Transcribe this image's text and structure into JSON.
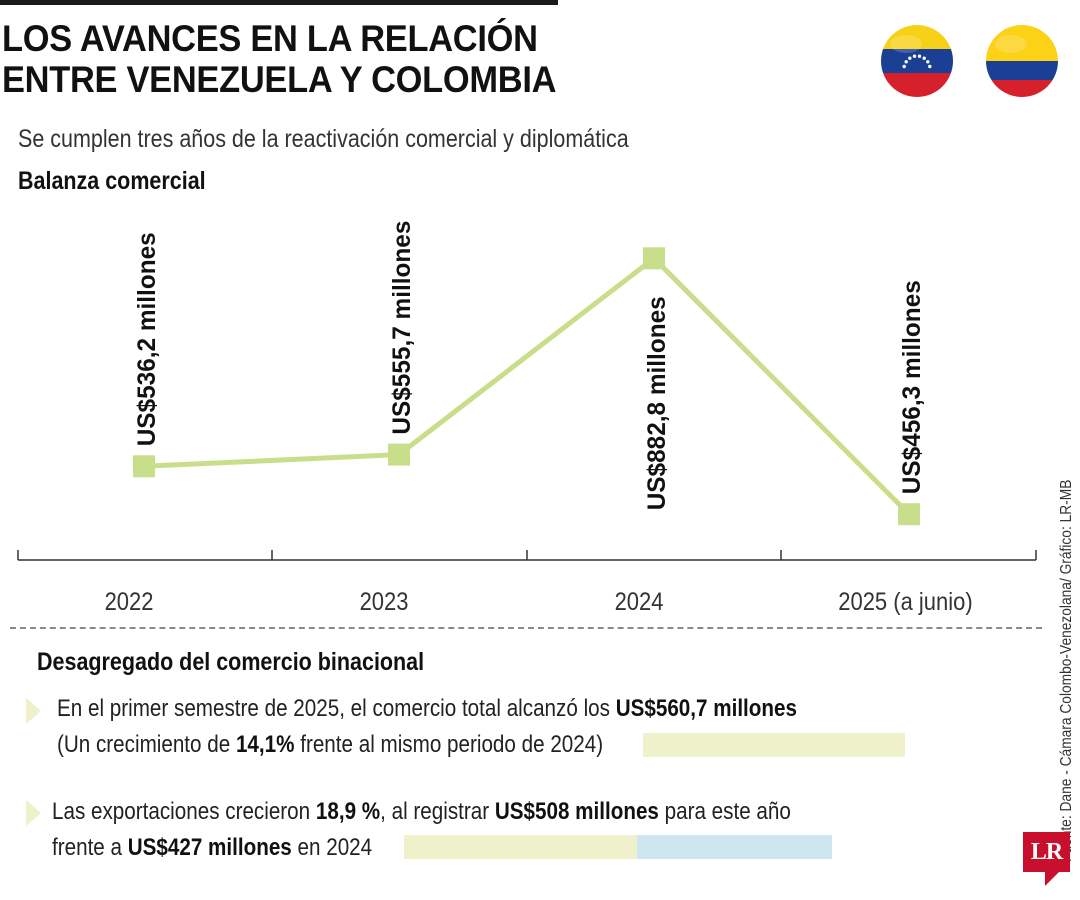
{
  "header": {
    "title_line1": "LOS AVANCES EN LA RELACIÓN",
    "title_line2": "ENTRE VENEZUELA Y COLOMBIA",
    "subtitle": "Se cumplen tres años de la reactivación comercial y diplomática",
    "section_title": "Balanza comercial"
  },
  "flags": {
    "venezuela": {
      "icon": "venezuela-flag-icon",
      "colors": [
        "#f7d117",
        "#1b3f94",
        "#d6202b"
      ]
    },
    "colombia": {
      "icon": "colombia-flag-icon",
      "colors": [
        "#fcd116",
        "#1b3f94",
        "#d6202b"
      ]
    }
  },
  "chart_data": {
    "type": "line",
    "categories": [
      "2022",
      "2023",
      "2024",
      "2025 (a junio)"
    ],
    "values": [
      536.2,
      555.7,
      882.8,
      456.3
    ],
    "data_labels": [
      "US$536,2 millones",
      "US$555,7 millones",
      "US$882,8 millones",
      "US$456,3 millones"
    ],
    "title": "Balanza comercial",
    "unit": "US$ millones",
    "ylim": [
      420,
      900
    ],
    "grid": false,
    "line_color": "#c9de8a",
    "marker_color": "#c9de8a"
  },
  "desagregado": {
    "title": "Desagregado del comercio binacional",
    "item1": {
      "pre": "En el primer semestre de 2025, el comercio total alcanzó los ",
      "bold": "US$560,7 millones",
      "line2_pre": "(Un crecimiento de ",
      "line2_bold": "14,1%",
      "line2_post": " frente al mismo periodo de 2024)",
      "bar_color": "#eef1c9"
    },
    "item2": {
      "pre": "Las exportaciones crecieron ",
      "bold1": "18,9 %",
      "mid": ", al registrar ",
      "bold2": "US$508 millones",
      "post": " para este año",
      "line2_pre": "frente a ",
      "line2_bold": "US$427 millones",
      "line2_post": " en 2024",
      "bar_colors": [
        "#eef1c9",
        "#cde6f0"
      ]
    }
  },
  "source": "Fuente: Dane - Cámara Colombo-Venezolana/ Gráfico: LR-MB",
  "logo": {
    "text": "LR",
    "color": "#c8102e"
  }
}
